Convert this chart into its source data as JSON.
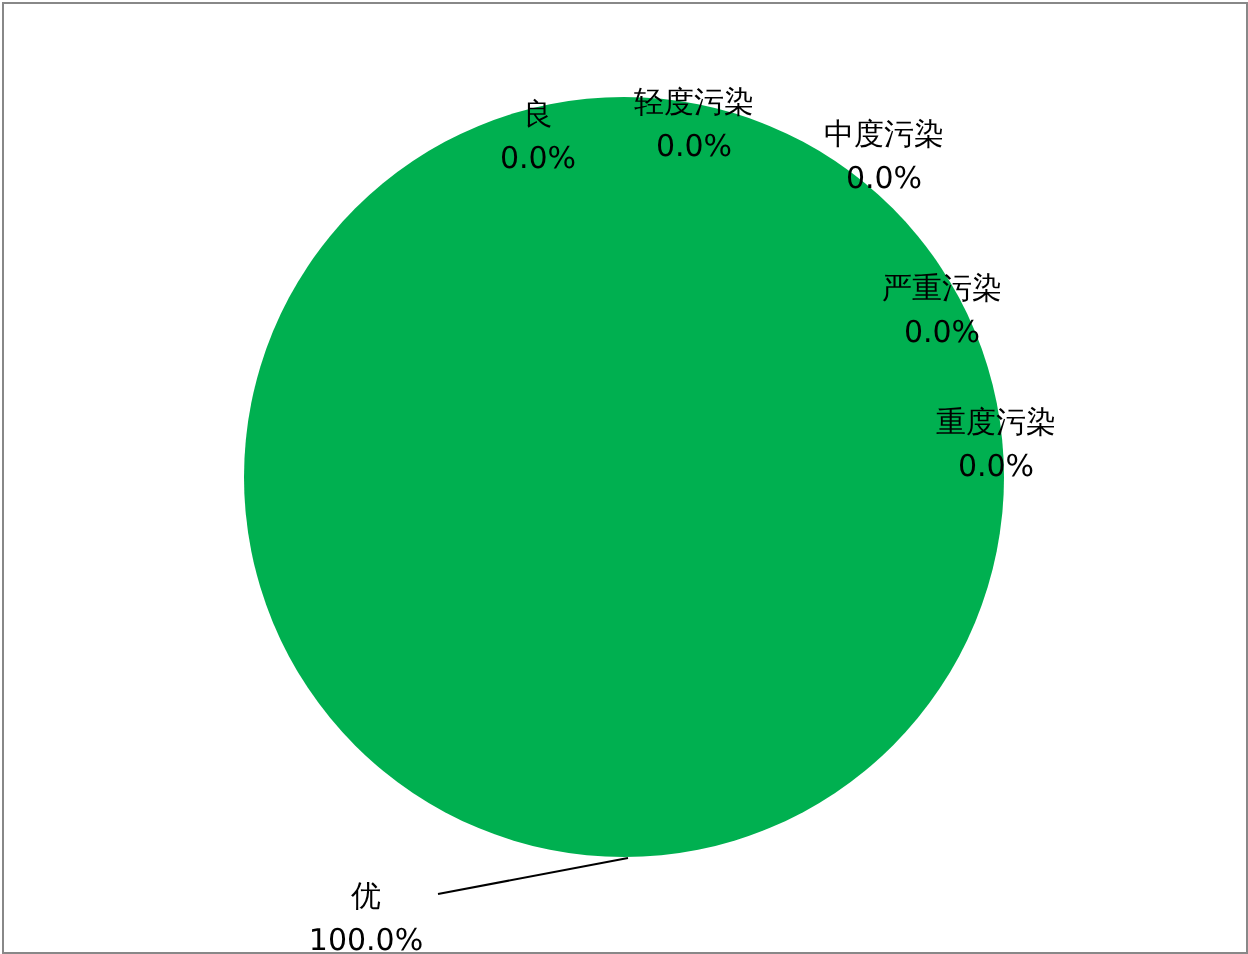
{
  "chart_data": {
    "type": "pie",
    "categories": [
      "优",
      "良",
      "轻度污染",
      "中度污染",
      "严重污染",
      "重度污染"
    ],
    "values": [
      100,
      0,
      0,
      0,
      0,
      0
    ],
    "colors": [
      "#00b050",
      "#ffff00",
      "#ffc000",
      "#ff0000",
      "#800000",
      "#7030a0"
    ],
    "value_labels": [
      "100.0%",
      "0.0%",
      "0.0%",
      "0.0%",
      "0.0%",
      "0.0%"
    ]
  }
}
